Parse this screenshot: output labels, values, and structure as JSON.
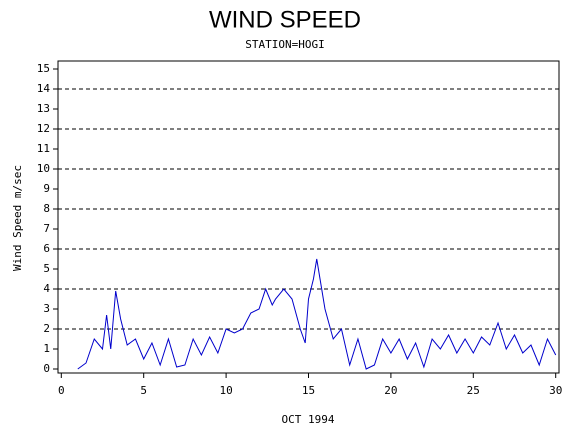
{
  "chart_data": {
    "type": "line",
    "title": "WIND SPEED",
    "subtitle": "STATION=HOGI",
    "x_label": "OCT 1994",
    "y_label": "Wind Speed m/sec",
    "x": [
      1.0,
      1.5,
      2.0,
      2.5,
      2.75,
      3.0,
      3.3,
      3.6,
      4.0,
      4.5,
      5.0,
      5.5,
      6.0,
      6.5,
      7.0,
      7.5,
      8.0,
      8.5,
      9.0,
      9.5,
      10.0,
      10.5,
      11.0,
      11.5,
      12.0,
      12.4,
      12.8,
      13.0,
      13.5,
      14.0,
      14.5,
      14.8,
      15.0,
      15.3,
      15.5,
      15.7,
      16.0,
      16.5,
      17.0,
      17.5,
      18.0,
      18.5,
      19.0,
      19.5,
      20.0,
      20.5,
      21.0,
      21.5,
      22.0,
      22.5,
      23.0,
      23.5,
      24.0,
      24.5,
      25.0,
      25.5,
      26.0,
      26.5,
      27.0,
      27.5,
      28.0,
      28.5,
      29.0,
      29.5,
      30.0
    ],
    "series": [
      {
        "name": "Wind Speed",
        "color": "#0000cc",
        "values": [
          0,
          0.3,
          1.5,
          1.0,
          2.7,
          1.0,
          3.9,
          2.5,
          1.2,
          1.5,
          0.5,
          1.3,
          0.2,
          1.5,
          0.1,
          0.2,
          1.5,
          0.7,
          1.6,
          0.8,
          2.0,
          1.8,
          2.0,
          2.8,
          3.0,
          4.0,
          3.2,
          3.5,
          4.0,
          3.5,
          2.0,
          1.3,
          3.5,
          4.5,
          5.5,
          4.5,
          3.0,
          1.5,
          2.0,
          0.2,
          1.5,
          0,
          0.2,
          1.5,
          0.8,
          1.5,
          0.5,
          1.3,
          0.1,
          1.5,
          1.0,
          1.7,
          0.8,
          1.5,
          0.8,
          1.6,
          1.2,
          2.3,
          1.0,
          1.7,
          0.8,
          1.2,
          0.2,
          1.5,
          0.7
        ]
      }
    ],
    "xlim": [
      -0.2,
      30.2
    ],
    "xticks": [
      0,
      5,
      10,
      15,
      20,
      25,
      30
    ],
    "ylim": [
      -0.2,
      15.4
    ],
    "yticks": [
      0,
      1,
      2,
      3,
      4,
      5,
      6,
      7,
      8,
      9,
      10,
      11,
      12,
      13,
      14,
      15
    ],
    "grid": true
  }
}
